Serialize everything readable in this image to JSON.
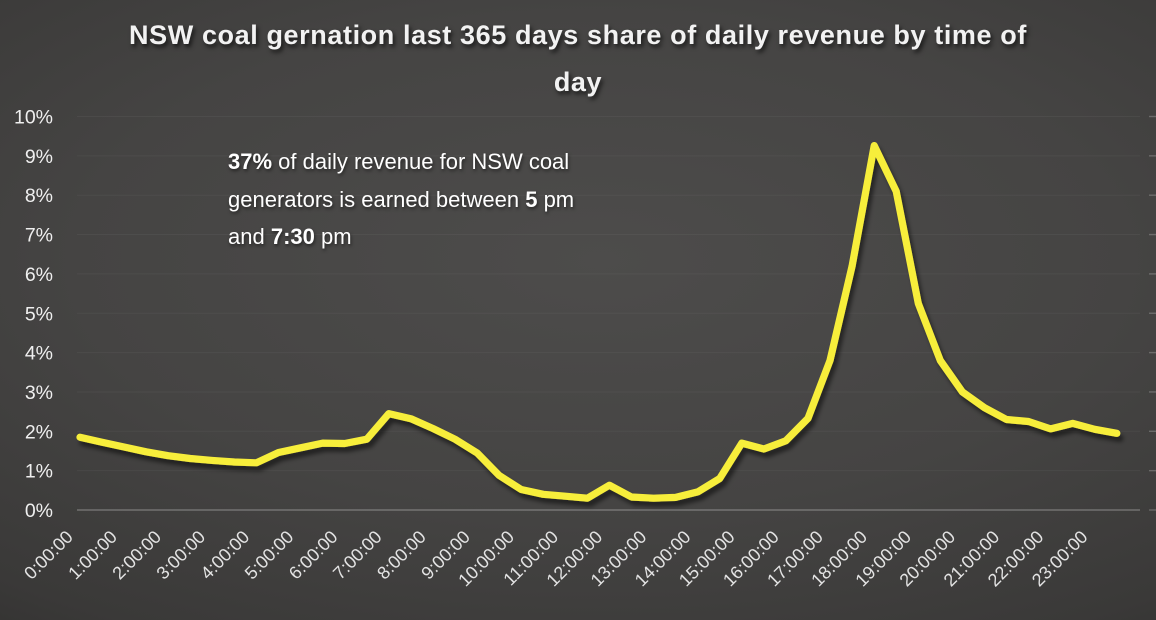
{
  "title": "NSW coal gernation last 365 days share of daily revenue by time of day",
  "annotation": {
    "lines": [
      [
        {
          "text": "37%",
          "bold": true
        },
        {
          "text": " of daily revenue  for NSW coal",
          "bold": false
        }
      ],
      [
        {
          "text": "generators is earned between ",
          "bold": false
        },
        {
          "text": "5",
          "bold": true
        },
        {
          "text": " pm",
          "bold": false
        }
      ],
      [
        {
          "text": "and ",
          "bold": false
        },
        {
          "text": "7:30",
          "bold": true
        },
        {
          "text": " pm",
          "bold": false
        }
      ]
    ]
  },
  "chart_data": {
    "type": "line",
    "title": "NSW coal gernation last 365 days share of daily revenue by time of day",
    "x": [
      "0:00:00",
      "0:30:00",
      "1:00:00",
      "1:30:00",
      "2:00:00",
      "2:30:00",
      "3:00:00",
      "3:30:00",
      "4:00:00",
      "4:30:00",
      "5:00:00",
      "5:30:00",
      "6:00:00",
      "6:30:00",
      "7:00:00",
      "7:30:00",
      "8:00:00",
      "8:30:00",
      "9:00:00",
      "9:30:00",
      "10:00:00",
      "10:30:00",
      "11:00:00",
      "11:30:00",
      "12:00:00",
      "12:30:00",
      "13:00:00",
      "13:30:00",
      "14:00:00",
      "14:30:00",
      "15:00:00",
      "15:30:00",
      "16:00:00",
      "16:30:00",
      "17:00:00",
      "17:30:00",
      "18:00:00",
      "18:30:00",
      "19:00:00",
      "19:30:00",
      "20:00:00",
      "20:30:00",
      "21:00:00",
      "21:30:00",
      "22:00:00",
      "22:30:00",
      "23:00:00",
      "23:30:00"
    ],
    "values": [
      1.85,
      1.72,
      1.6,
      1.48,
      1.38,
      1.31,
      1.26,
      1.22,
      1.2,
      1.46,
      1.58,
      1.7,
      1.69,
      1.8,
      2.45,
      2.32,
      2.07,
      1.8,
      1.45,
      0.88,
      0.52,
      0.4,
      0.35,
      0.3,
      0.63,
      0.33,
      0.3,
      0.32,
      0.46,
      0.8,
      1.7,
      1.55,
      1.76,
      2.33,
      3.8,
      6.2,
      9.26,
      8.1,
      5.25,
      3.8,
      3.0,
      2.6,
      2.3,
      2.25,
      2.06,
      2.2,
      2.05,
      1.95
    ],
    "x_tick_labels": [
      "0:00:00",
      "1:00:00",
      "2:00:00",
      "3:00:00",
      "4:00:00",
      "5:00:00",
      "6:00:00",
      "7:00:00",
      "8:00:00",
      "9:00:00",
      "10:00:00",
      "11:00:00",
      "12:00:00",
      "13:00:00",
      "14:00:00",
      "15:00:00",
      "16:00:00",
      "17:00:00",
      "18:00:00",
      "19:00:00",
      "20:00:00",
      "21:00:00",
      "22:00:00",
      "23:00:00"
    ],
    "y_tick_labels": [
      "0%",
      "1%",
      "2%",
      "3%",
      "4%",
      "5%",
      "6%",
      "7%",
      "8%",
      "9%",
      "10%"
    ],
    "ylim": [
      0,
      10
    ],
    "xlabel": "",
    "ylabel": "",
    "legend": "none",
    "grid": "faint horizontal gridlines, baseline axis at 0%",
    "line_color": "#f7ee3b",
    "label_color": "#e8e8e8",
    "background_color": "dark gray gradient"
  }
}
